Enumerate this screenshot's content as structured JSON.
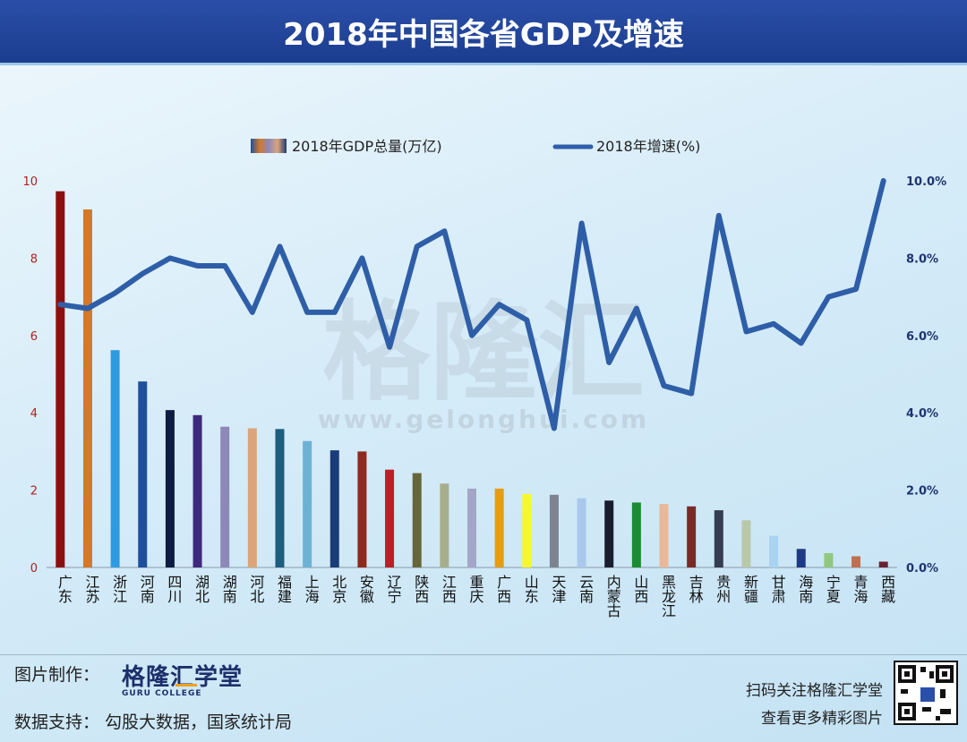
{
  "header": {
    "title": "2018年中国各省GDP及增速"
  },
  "chart_data": {
    "type": "bar+line",
    "categories": [
      "广东",
      "江苏",
      "浙江",
      "河南",
      "四川",
      "湖北",
      "湖南",
      "河北",
      "福建",
      "上海",
      "北京",
      "安徽",
      "辽宁",
      "陕西",
      "江西",
      "重庆",
      "广西",
      "山东",
      "天津",
      "云南",
      "内蒙古",
      "山西",
      "黑龙江",
      "吉林",
      "贵州",
      "新疆",
      "甘肃",
      "海南",
      "宁夏",
      "青海",
      "西藏"
    ],
    "series": [
      {
        "name": "2018年GDP总量(万亿)",
        "type": "bar",
        "axis": "left",
        "values": [
          9.73,
          9.26,
          5.62,
          4.81,
          4.07,
          3.94,
          3.64,
          3.6,
          3.58,
          3.27,
          3.03,
          3.0,
          2.53,
          2.44,
          2.17,
          2.04,
          2.04,
          1.9,
          1.88,
          1.79,
          1.73,
          1.68,
          1.64,
          1.58,
          1.48,
          1.22,
          0.82,
          0.48,
          0.37,
          0.29,
          0.15
        ]
      },
      {
        "name": "2018年增速(%)",
        "type": "line",
        "axis": "right",
        "values": [
          6.8,
          6.7,
          7.1,
          7.6,
          8.0,
          7.8,
          7.8,
          6.6,
          8.3,
          6.6,
          6.6,
          8.0,
          5.7,
          8.3,
          8.7,
          6.0,
          6.8,
          6.4,
          3.6,
          8.9,
          5.3,
          6.7,
          4.7,
          4.5,
          9.1,
          6.1,
          6.3,
          5.8,
          7.0,
          7.2,
          10.0
        ]
      }
    ],
    "bar_colors": [
      "#8c0f0f",
      "#d2792c",
      "#2d9be2",
      "#1f4f9c",
      "#0c1c42",
      "#3d2a7c",
      "#8d88b8",
      "#dca47a",
      "#1d5d7d",
      "#6db2d4",
      "#1a3c78",
      "#8e2a1e",
      "#b8202a",
      "#66663a",
      "#a7ae8c",
      "#a4a6c8",
      "#e89d0f",
      "#f6f82a",
      "#7d8490",
      "#aac8ec",
      "#1a1d30",
      "#1b8b35",
      "#e8b898",
      "#7a2a25",
      "#353d52",
      "#b9c8a8",
      "#aad2f2",
      "#1e3a86",
      "#90c880",
      "#c07050",
      "#6a2030"
    ],
    "line_color": "#2f5ea8",
    "y_left": {
      "min": 0,
      "max": 10,
      "ticks": [
        "0",
        "2",
        "4",
        "6",
        "8",
        "10"
      ]
    },
    "y_right": {
      "min": 0,
      "max": 10,
      "ticks": [
        "0.0%",
        "2.0%",
        "4.0%",
        "6.0%",
        "8.0%",
        "10.0%"
      ]
    },
    "legend_position": "top-center"
  },
  "watermark": {
    "text": "格隆汇",
    "url": "www.gelonghui.com"
  },
  "footer": {
    "made_by_label": "图片制作：",
    "logo_text": "格隆汇学堂",
    "logo_sub": "GURU COLLEGE",
    "data_label": "数据支持：  勾股大数据，国家统计局",
    "qr_line1": "扫码关注格隆汇学堂",
    "qr_line2": "查看更多精彩图片"
  }
}
